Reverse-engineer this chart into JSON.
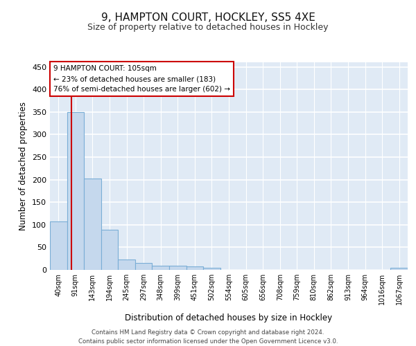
{
  "title1": "9, HAMPTON COURT, HOCKLEY, SS5 4XE",
  "title2": "Size of property relative to detached houses in Hockley",
  "xlabel": "Distribution of detached houses by size in Hockley",
  "ylabel": "Number of detached properties",
  "bin_labels": [
    "40sqm",
    "91sqm",
    "143sqm",
    "194sqm",
    "245sqm",
    "297sqm",
    "348sqm",
    "399sqm",
    "451sqm",
    "502sqm",
    "554sqm",
    "605sqm",
    "656sqm",
    "708sqm",
    "759sqm",
    "810sqm",
    "862sqm",
    "913sqm",
    "964sqm",
    "1016sqm",
    "1067sqm"
  ],
  "bar_values": [
    107,
    350,
    203,
    89,
    23,
    15,
    9,
    9,
    7,
    4,
    0,
    0,
    0,
    0,
    0,
    0,
    0,
    0,
    0,
    0,
    4
  ],
  "bar_color": "#c5d8ed",
  "bar_edge_color": "#7aaed6",
  "annotation_line1": "9 HAMPTON COURT: 105sqm",
  "annotation_line2": "← 23% of detached houses are smaller (183)",
  "annotation_line3": "76% of semi-detached houses are larger (602) →",
  "annotation_box_color": "#ffffff",
  "annotation_box_edge_color": "#cc0000",
  "vline_color": "#cc0000",
  "ylim": [
    0,
    460
  ],
  "yticks": [
    0,
    50,
    100,
    150,
    200,
    250,
    300,
    350,
    400,
    450
  ],
  "footer1": "Contains HM Land Registry data © Crown copyright and database right 2024.",
  "footer2": "Contains public sector information licensed under the Open Government Licence v3.0.",
  "background_color": "#e0eaf5",
  "grid_color": "#ffffff",
  "title1_fontsize": 11,
  "title2_fontsize": 9
}
